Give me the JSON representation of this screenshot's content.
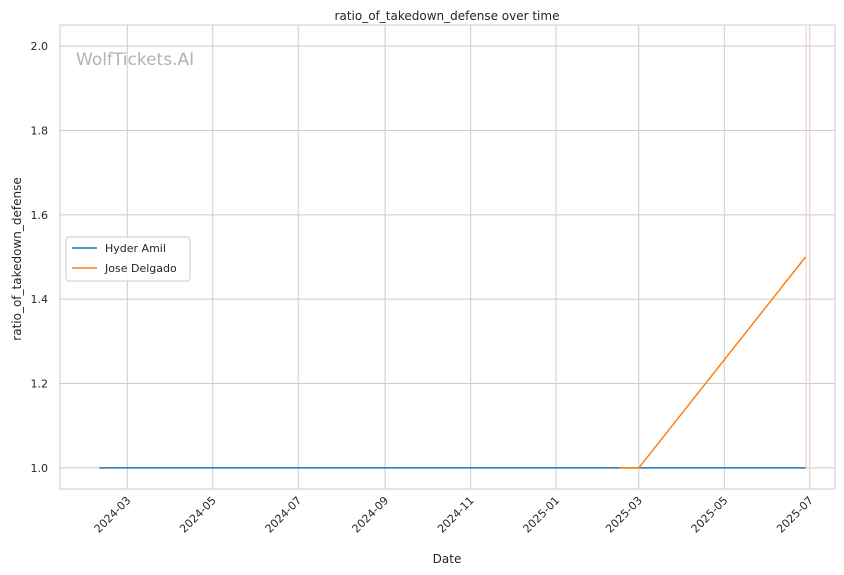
{
  "chart_data": {
    "type": "line",
    "title": "ratio_of_takedown_defense over time",
    "xlabel": "Date",
    "ylabel": "ratio_of_takedown_defense",
    "watermark": "WolfTickets.AI",
    "grid": true,
    "legend_position": "center-left",
    "x_type": "date",
    "xlim": [
      "2024-01-13",
      "2025-07-19"
    ],
    "ylim": [
      0.95,
      2.05
    ],
    "x_ticks": [
      "2024-03",
      "2024-05",
      "2024-07",
      "2024-09",
      "2024-11",
      "2025-01",
      "2025-03",
      "2025-05",
      "2025-07"
    ],
    "y_ticks": [
      1.0,
      1.2,
      1.4,
      1.6,
      1.8,
      2.0
    ],
    "y_tick_labels": [
      "1.0",
      "1.2",
      "1.4",
      "1.6",
      "1.8",
      "2.0"
    ],
    "series": [
      {
        "name": "Hyder Amil",
        "color": "#1f77b4",
        "x": [
          "2024-02-10",
          "2025-06-28"
        ],
        "y": [
          1.0,
          1.0
        ]
      },
      {
        "name": "Jose Delgado",
        "color": "#ff7f0e",
        "x": [
          "2025-02-15",
          "2025-03-01",
          "2025-06-28"
        ],
        "y": [
          1.0,
          1.0,
          1.5
        ]
      }
    ]
  }
}
